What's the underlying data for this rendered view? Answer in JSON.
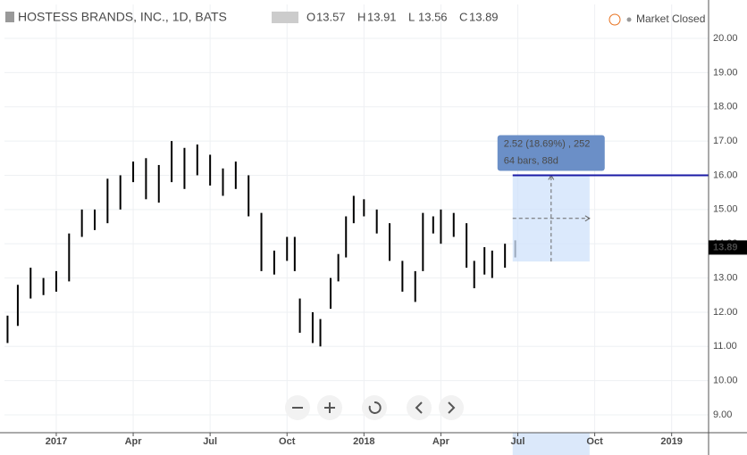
{
  "chart_data": {
    "type": "range-bar",
    "title": "HOSTESS BRANDS, INC., 1D, BATS",
    "ohlc_legend": [
      {
        "label": "O",
        "value": "13.57"
      },
      {
        "label": "H",
        "value": "13.91"
      },
      {
        "label": "L",
        "value": "13.56"
      },
      {
        "label": "C",
        "value": "13.89"
      }
    ],
    "status": "Market Closed",
    "color": "#000000",
    "x": [
      -1.9,
      -1.5,
      -1.0,
      -0.5,
      0.0,
      0.5,
      1.0,
      1.5,
      2.0,
      2.5,
      3.0,
      3.5,
      4.0,
      4.5,
      5.0,
      5.5,
      6.0,
      6.5,
      7.0,
      7.5,
      8.0,
      8.5,
      9.0,
      9.3,
      9.5,
      10.0,
      10.3,
      10.7,
      11.0,
      11.3,
      11.6,
      12.0,
      12.5,
      13.0,
      13.5,
      14.0,
      14.3,
      14.7,
      15.0,
      15.5,
      16.0,
      16.3,
      16.7,
      17.0,
      17.5,
      17.9
    ],
    "lows": [
      11.1,
      11.6,
      12.4,
      12.5,
      12.6,
      12.9,
      14.2,
      14.4,
      14.6,
      15.0,
      15.8,
      15.3,
      15.2,
      15.8,
      15.6,
      16.0,
      15.7,
      15.4,
      15.6,
      14.8,
      13.2,
      13.1,
      13.5,
      13.2,
      11.4,
      11.1,
      11.0,
      12.1,
      12.9,
      13.6,
      14.6,
      14.8,
      14.3,
      13.5,
      12.6,
      12.3,
      13.2,
      14.3,
      14.0,
      14.2,
      13.3,
      12.7,
      13.1,
      13.0,
      13.3,
      13.6
    ],
    "highs": [
      11.9,
      12.8,
      13.3,
      13.0,
      13.2,
      14.3,
      15.0,
      15.0,
      15.9,
      16.0,
      16.4,
      16.5,
      16.3,
      17.0,
      16.8,
      16.9,
      16.6,
      16.2,
      16.4,
      16.0,
      14.9,
      13.8,
      14.2,
      14.2,
      12.4,
      12.0,
      11.8,
      13.0,
      13.7,
      14.8,
      15.4,
      15.3,
      15.0,
      14.6,
      13.5,
      13.2,
      14.9,
      14.8,
      15.0,
      14.9,
      14.6,
      13.5,
      13.9,
      13.8,
      14.0,
      14.1
    ],
    "xlim": [
      -2.02,
      25.44
    ],
    "xticks": [
      {
        "value": 0,
        "label": "2017"
      },
      {
        "value": 3,
        "label": "Apr"
      },
      {
        "value": 6,
        "label": "Jul"
      },
      {
        "value": 9,
        "label": "Oct"
      },
      {
        "value": 12,
        "label": "2018"
      },
      {
        "value": 15,
        "label": "Apr"
      },
      {
        "value": 18,
        "label": "Jul"
      },
      {
        "value": 21,
        "label": "Oct"
      },
      {
        "value": 24,
        "label": "2019"
      }
    ],
    "ylim": [
      8.48,
      20.99
    ],
    "yticks": [
      {
        "value": 9,
        "label": "9.00"
      },
      {
        "value": 10,
        "label": "10.00"
      },
      {
        "value": 11,
        "label": "11.00"
      },
      {
        "value": 12,
        "label": "12.00"
      },
      {
        "value": 13,
        "label": "13.00"
      },
      {
        "value": 14,
        "label": "14.00"
      },
      {
        "value": 15,
        "label": "15.00"
      },
      {
        "value": 16,
        "label": "16.00"
      },
      {
        "value": 17,
        "label": "17.00"
      },
      {
        "value": 18,
        "label": "18.00"
      },
      {
        "value": 19,
        "label": "19.00"
      },
      {
        "value": 20,
        "label": "20.00"
      }
    ],
    "grid": true,
    "last_price": {
      "value": 13.89,
      "label": "13.89"
    },
    "horizontal_line": {
      "value": 16.0,
      "color": "#1a1aa6"
    },
    "measure": {
      "x_start": 17.8,
      "x_end": 20.8,
      "from": 13.48,
      "to": 16.0,
      "lines": [
        "2.52 (18.69%) , 252",
        "64 bars, 88d"
      ]
    }
  }
}
